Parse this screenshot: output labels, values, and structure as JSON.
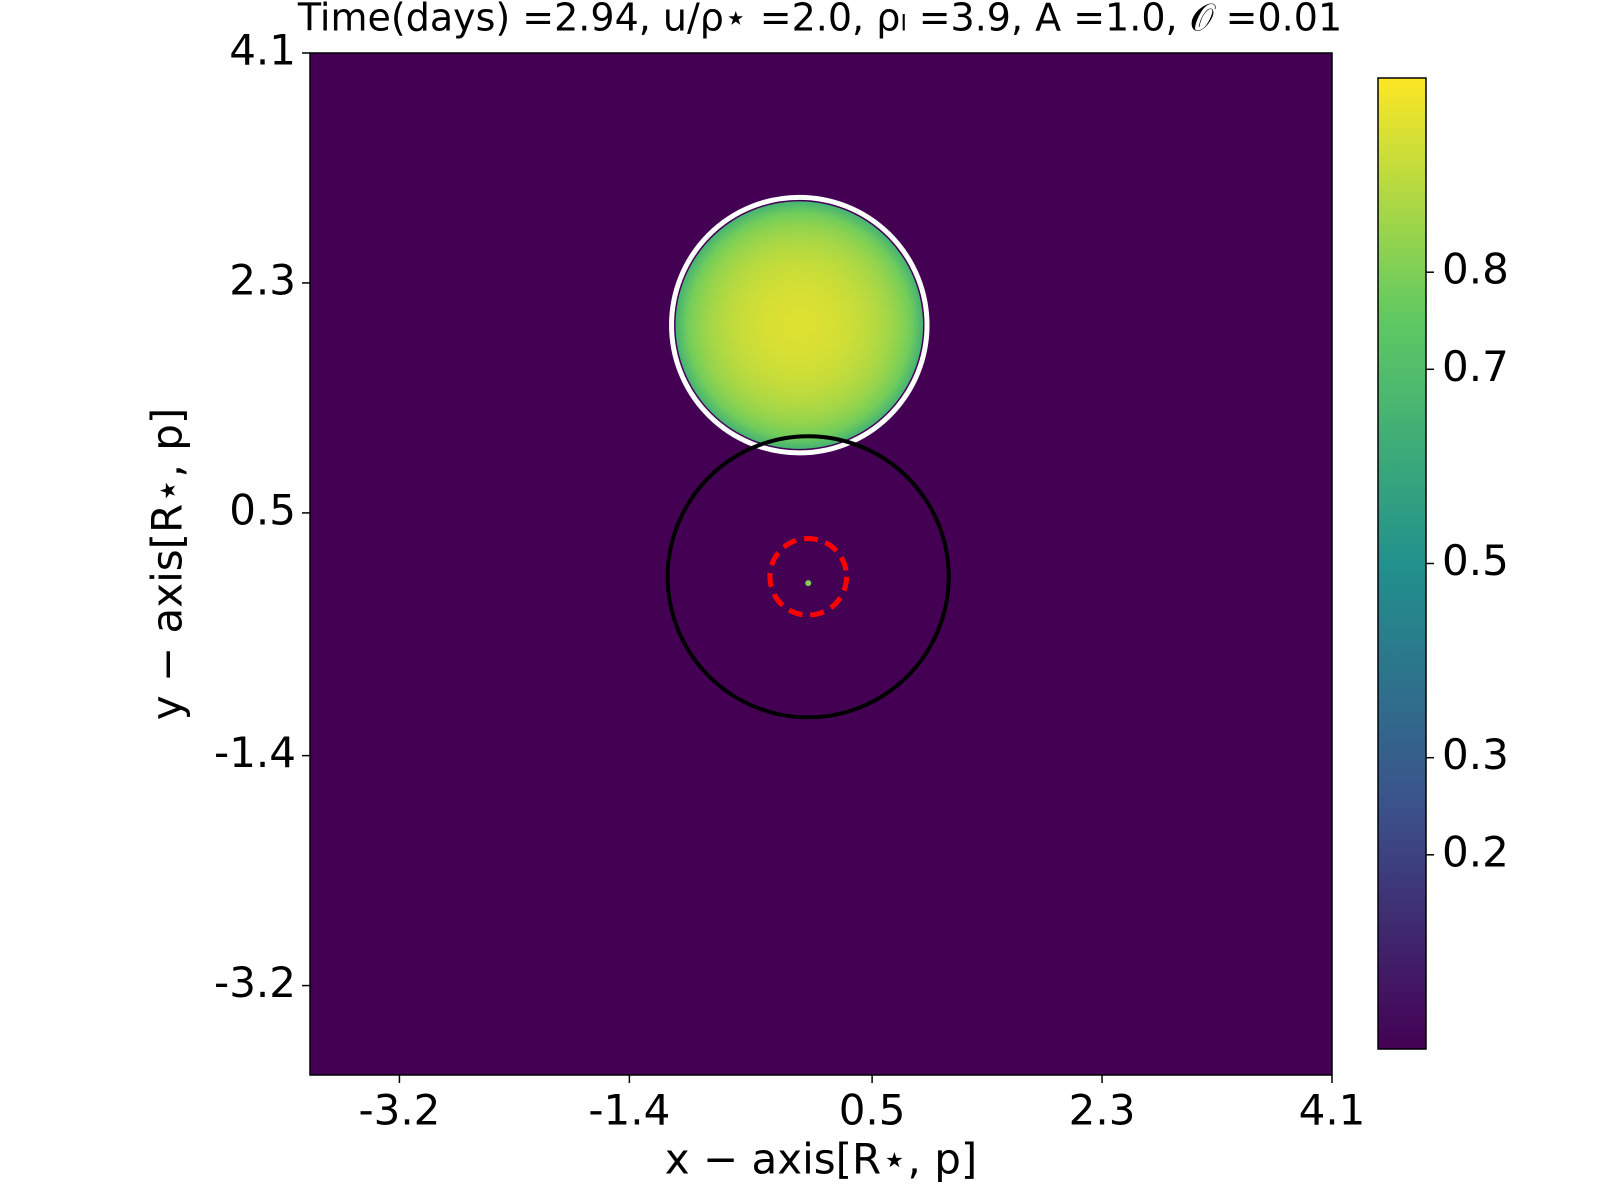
{
  "chart_data": {
    "type": "image",
    "title": "Time(days) =2.94,  u/ρ⋆ =2.0,  ρₗ =3.9,  A =1.0,  𝒪 =0.01",
    "xlabel": "x − axis[R⋆, p]",
    "ylabel": "y − axis[R⋆, p]",
    "xlim": [
      -3.9,
      4.1
    ],
    "ylim": [
      -3.9,
      4.1
    ],
    "xticks": [
      -3.2,
      -1.4,
      0.5,
      2.3,
      4.1
    ],
    "yticks": [
      -3.2,
      -1.4,
      0.5,
      2.3,
      4.1
    ],
    "colormap": [
      "#440154",
      "#3b528b",
      "#21918c",
      "#5ec962",
      "#fde725"
    ],
    "clim": [
      0,
      1
    ],
    "cticks": [
      0.2,
      0.3,
      0.5,
      0.7,
      0.8
    ],
    "star": {
      "x": -0.07,
      "y": 1.97,
      "radius": 1.0,
      "peak": 0.95,
      "limb": 0.65,
      "color": "#ffffff"
    },
    "lens_ring": {
      "x": 0.0,
      "y": 0.0,
      "radius": 1.1,
      "color": "#000000"
    },
    "source_ring": {
      "x": 0.0,
      "y": 0.0,
      "radius": 0.3,
      "color": "#ff0000"
    },
    "image_point": {
      "x": 0.0,
      "y": -0.05,
      "value": 0.8
    }
  }
}
